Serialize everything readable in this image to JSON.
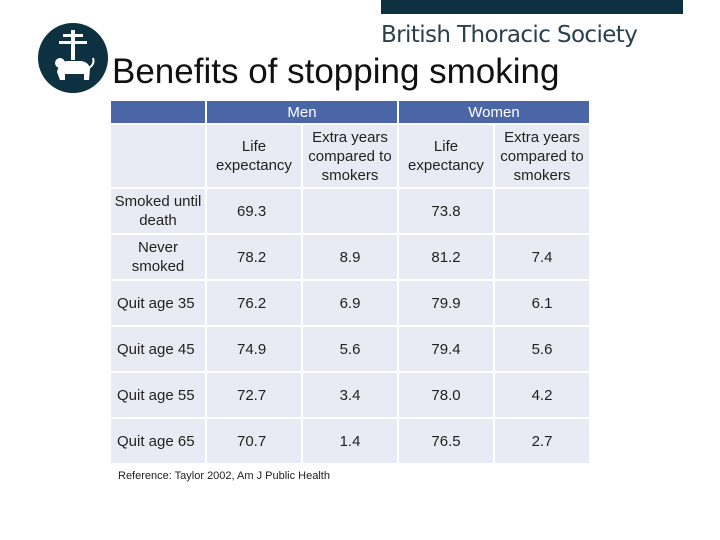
{
  "brand": {
    "name": "British Thoracic Society"
  },
  "slide": {
    "title": "Benefits of stopping smoking"
  },
  "table": {
    "groups": [
      "Men",
      "Women"
    ],
    "subheaders": [
      "Life expectancy",
      "Extra years compared to smokers",
      "Life expectancy",
      "Extra years compared to smokers"
    ],
    "rows": [
      {
        "label": "Smoked until death",
        "men_le": "69.3",
        "men_extra": "",
        "women_le": "73.8",
        "women_extra": ""
      },
      {
        "label": "Never smoked",
        "men_le": "78.2",
        "men_extra": "8.9",
        "women_le": "81.2",
        "women_extra": "7.4"
      },
      {
        "label": "Quit age 35",
        "men_le": "76.2",
        "men_extra": "6.9",
        "women_le": "79.9",
        "women_extra": "6.1"
      },
      {
        "label": "Quit age 45",
        "men_le": "74.9",
        "men_extra": "5.6",
        "women_le": "79.4",
        "women_extra": "5.6"
      },
      {
        "label": "Quit age 55",
        "men_le": "72.7",
        "men_extra": "3.4",
        "women_le": "78.0",
        "women_extra": "4.2"
      },
      {
        "label": "Quit age 65",
        "men_le": "70.7",
        "men_extra": "1.4",
        "women_le": "76.5",
        "women_extra": "2.7"
      }
    ]
  },
  "reference": "Reference: Taylor 2002, Am J Public Health",
  "colors": {
    "brand_dark": "#0d3140",
    "header_blue": "#4b66a6",
    "cell_bg": "#e8ebf3"
  }
}
